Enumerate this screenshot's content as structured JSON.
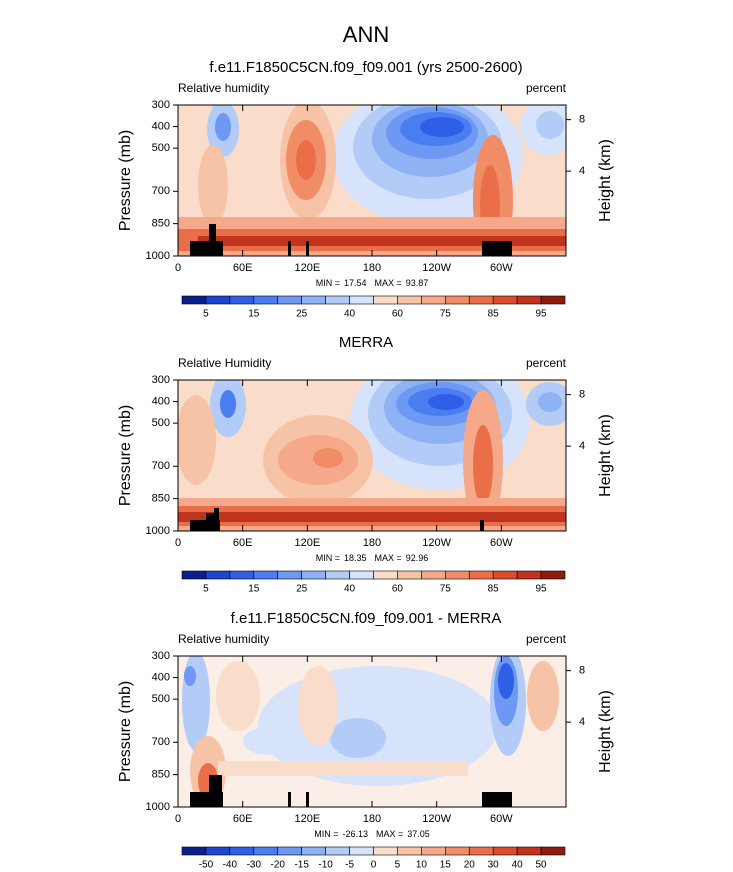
{
  "title": "ANN",
  "chart_data": [
    {
      "type": "contour",
      "title": "f.e11.F1850C5CN.f09_f09.001 (yrs 2500-2600)",
      "left_label": "Relative humidity",
      "right_label": "percent",
      "ylabel": "Pressure (mb)",
      "y2label": "Height (km)",
      "xlim": [
        0,
        360
      ],
      "xticks": [
        0,
        {
          "value": 60,
          "label": "60E"
        },
        {
          "value": 120,
          "label": "120E"
        },
        180,
        {
          "value": 240,
          "label": "120W"
        },
        {
          "value": 300,
          "label": "60W"
        }
      ],
      "ylim": [
        1000,
        300
      ],
      "yticks": [
        300,
        400,
        500,
        700,
        850,
        1000
      ],
      "y2ticks": [
        4,
        8
      ],
      "min_label": "MIN =",
      "min": 17.54,
      "max_label": "MAX =",
      "max": 93.87,
      "colorbar": {
        "levels": [
          5,
          15,
          25,
          40,
          60,
          75,
          85,
          95
        ],
        "colors": [
          "#0a1f8a",
          "#1c45d0",
          "#2e5fe6",
          "#4a7df0",
          "#6d98f3",
          "#8fb2f5",
          "#b3cbf7",
          "#d6e3fa",
          "#f9dcc9",
          "#f7c3a7",
          "#f5a98a",
          "#f08c66",
          "#ea6f48",
          "#dd4c2a",
          "#c0331c",
          "#8e1a10"
        ]
      }
    },
    {
      "type": "contour",
      "title": "MERRA",
      "left_label": "Relative Humidity",
      "right_label": "percent",
      "ylabel": "Pressure (mb)",
      "y2label": "Height (km)",
      "xlim": [
        0,
        360
      ],
      "xticks": [
        0,
        {
          "value": 60,
          "label": "60E"
        },
        {
          "value": 120,
          "label": "120E"
        },
        180,
        {
          "value": 240,
          "label": "120W"
        },
        {
          "value": 300,
          "label": "60W"
        }
      ],
      "ylim": [
        1000,
        300
      ],
      "yticks": [
        300,
        400,
        500,
        700,
        850,
        1000
      ],
      "y2ticks": [
        4,
        8
      ],
      "min_label": "MIN =",
      "min": 18.35,
      "max_label": "MAX =",
      "max": 92.96,
      "colorbar": {
        "levels": [
          5,
          15,
          25,
          40,
          60,
          75,
          85,
          95
        ],
        "colors": [
          "#0a1f8a",
          "#1c45d0",
          "#2e5fe6",
          "#4a7df0",
          "#6d98f3",
          "#8fb2f5",
          "#b3cbf7",
          "#d6e3fa",
          "#f9dcc9",
          "#f7c3a7",
          "#f5a98a",
          "#f08c66",
          "#ea6f48",
          "#dd4c2a",
          "#c0331c",
          "#8e1a10"
        ]
      }
    },
    {
      "type": "contour",
      "title": "f.e11.F1850C5CN.f09_f09.001 - MERRA",
      "left_label": "Relative humidity",
      "right_label": "percent",
      "ylabel": "Pressure (mb)",
      "y2label": "Height (km)",
      "xlim": [
        0,
        360
      ],
      "xticks": [
        0,
        {
          "value": 60,
          "label": "60E"
        },
        {
          "value": 120,
          "label": "120E"
        },
        180,
        {
          "value": 240,
          "label": "120W"
        },
        {
          "value": 300,
          "label": "60W"
        }
      ],
      "ylim": [
        1000,
        300
      ],
      "yticks": [
        300,
        400,
        500,
        700,
        850,
        1000
      ],
      "y2ticks": [
        4,
        8
      ],
      "min_label": "MIN =",
      "min": -26.13,
      "max_label": "MAX =",
      "max": 37.05,
      "colorbar": {
        "levels": [
          -50,
          -40,
          -30,
          -20,
          -15,
          -10,
          -5,
          0,
          5,
          10,
          15,
          20,
          30,
          40,
          50
        ],
        "colors": [
          "#0a1f8a",
          "#1c45d0",
          "#2e5fe6",
          "#4a7df0",
          "#6d98f3",
          "#8fb2f5",
          "#b3cbf7",
          "#d6e3fa",
          "#f9dcc9",
          "#f7c3a7",
          "#f5a98a",
          "#f08c66",
          "#ea6f48",
          "#dd4c2a",
          "#c0331c",
          "#8e1a10"
        ]
      }
    }
  ]
}
